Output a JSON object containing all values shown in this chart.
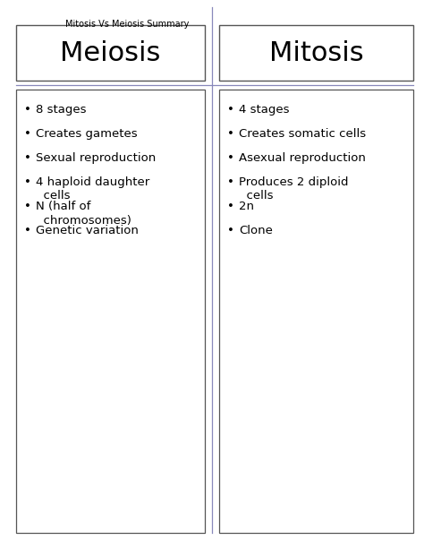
{
  "title": "Mitosis Vs Meiosis Summary",
  "left_header": "Meiosis",
  "right_header": "Mitosis",
  "left_bullets": [
    "8 stages",
    "Creates gametes",
    "Sexual reproduction",
    "4 haploid daughter\n  cells",
    "N (half of\n  chromosomes)",
    "Genetic variation"
  ],
  "right_bullets": [
    "4 stages",
    "Creates somatic cells",
    "Asexual reproduction",
    "Produces 2 diploid\n  cells",
    "2n",
    "Clone"
  ],
  "bg_color": "#ffffff",
  "text_color": "#000000",
  "header_fontsize": 22,
  "bullet_fontsize": 9.5,
  "title_fontsize": 7,
  "divider_color": "#8888bb",
  "box_edge_color": "#555555",
  "fig_width": 4.74,
  "fig_height": 6.13,
  "dpi": 100
}
